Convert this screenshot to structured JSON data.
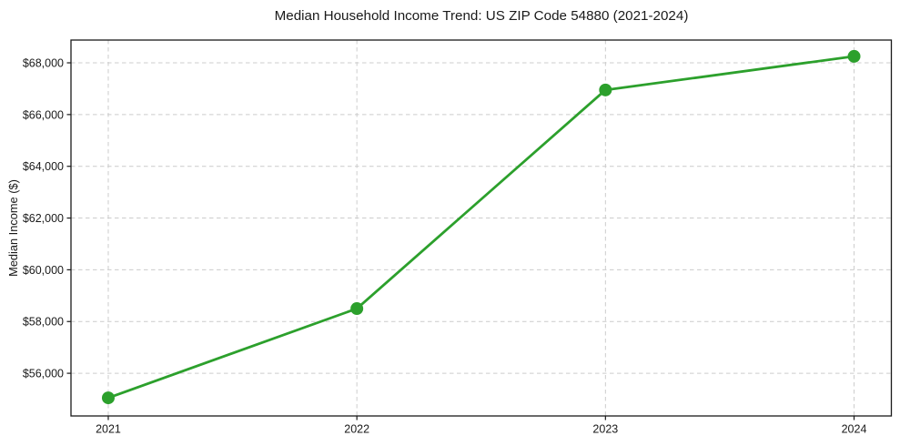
{
  "chart_data": {
    "type": "line",
    "title": "Median Household Income Trend: US ZIP Code 54880 (2021-2024)",
    "xlabel": "",
    "ylabel": "Median Income ($)",
    "x": [
      2021,
      2022,
      2023,
      2024
    ],
    "x_tick_labels": [
      "2021",
      "2022",
      "2023",
      "2024"
    ],
    "values": [
      55050,
      58500,
      66950,
      68250
    ],
    "y_ticks": [
      56000,
      58000,
      60000,
      62000,
      64000,
      66000,
      68000
    ],
    "y_tick_labels": [
      "$56,000",
      "$58,000",
      "$60,000",
      "$62,000",
      "$64,000",
      "$66,000",
      "$68,000"
    ],
    "xlim": [
      2020.85,
      2024.15
    ],
    "ylim": [
      54350,
      68880
    ],
    "grid": true,
    "grid_style": "dashed",
    "legend": "none",
    "colors": {
      "line": "#2ca02c",
      "marker": "#2ca02c",
      "grid": "#cccccc",
      "axis": "#1a1a1a",
      "background": "#ffffff"
    }
  }
}
